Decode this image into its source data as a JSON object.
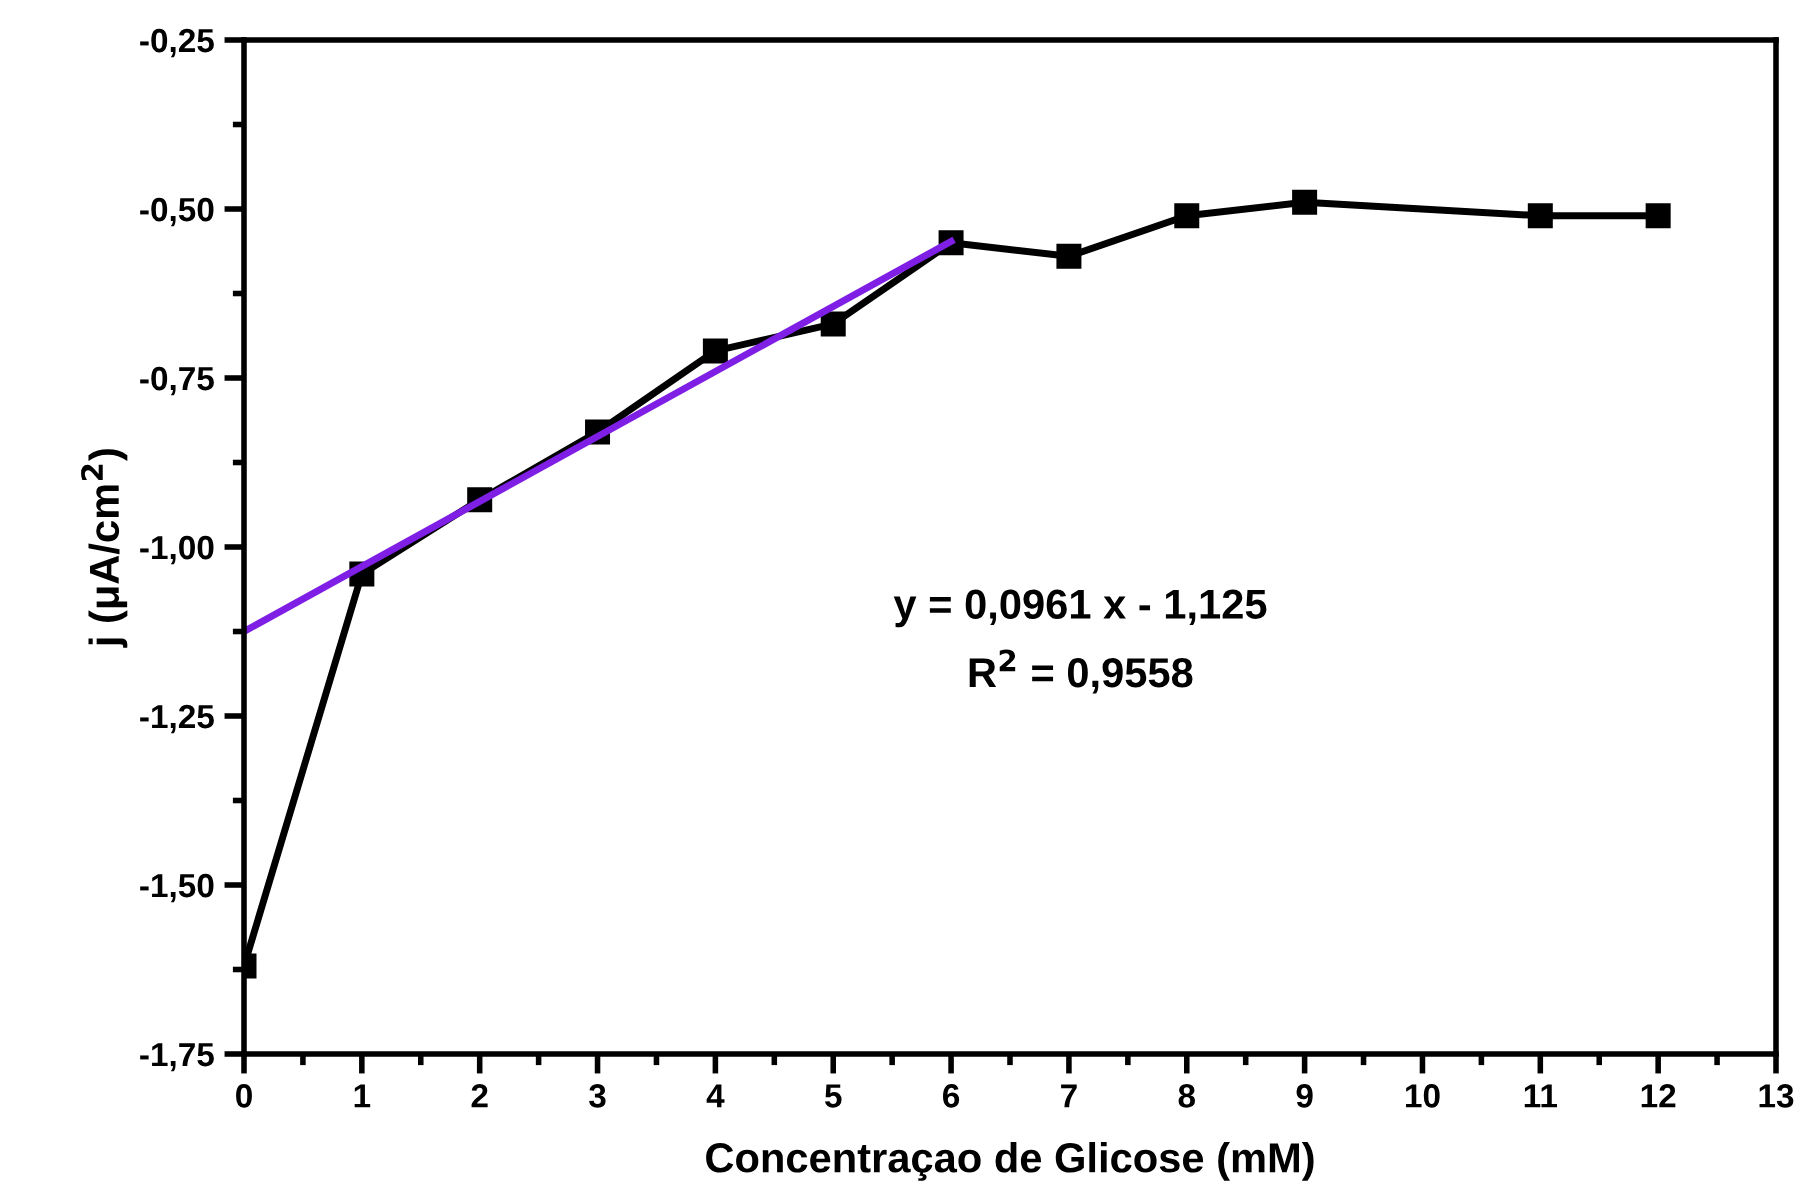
{
  "chart_data": {
    "type": "line",
    "xlabel": "Concentraçao de Glicose (mM)",
    "ylabel": "j (μA/cm$^{2}$)",
    "series": [
      {
        "color": "#000000",
        "marker": "square",
        "x": [
          0,
          1,
          2,
          3,
          4,
          5,
          6,
          7,
          8,
          9,
          11,
          12
        ],
        "values": [
          -1.62,
          -1.04,
          -0.93,
          -0.83,
          -0.71,
          -0.67,
          -0.55,
          -0.57,
          -0.51,
          -0.49,
          -0.51,
          -0.51
        ]
      },
      {
        "type": "line",
        "color": "#7f1fe6",
        "marker": "none",
        "x": [
          0,
          6
        ],
        "values": [
          -1.125,
          -0.548
        ]
      }
    ],
    "xlim": [
      0,
      13
    ],
    "xticks": [
      0,
      {
        "value": 0.5,
        "label": null
      },
      1,
      {
        "value": 1.5,
        "label": null
      },
      2,
      {
        "value": 2.5,
        "label": null
      },
      3,
      {
        "value": 3.5,
        "label": null
      },
      4,
      {
        "value": 4.5,
        "label": null
      },
      5,
      {
        "value": 5.5,
        "label": null
      },
      6,
      {
        "value": 6.5,
        "label": null
      },
      7,
      {
        "value": 7.5,
        "label": null
      },
      8,
      {
        "value": 8.5,
        "label": null
      },
      9,
      {
        "value": 9.5,
        "label": null
      },
      10,
      {
        "value": 10.5,
        "label": null
      },
      11,
      {
        "value": 11.5,
        "label": null
      },
      12,
      {
        "value": 12.5,
        "label": null
      },
      13
    ],
    "ylim": [
      -1.75,
      -0.25
    ],
    "yticks": [
      {
        "value": -1.75,
        "label": "-1,75"
      },
      {
        "value": -1.625,
        "label": null
      },
      {
        "value": -1.5,
        "label": "-1,50"
      },
      {
        "value": -1.375,
        "label": null
      },
      {
        "value": -1.25,
        "label": "-1,25"
      },
      {
        "value": -1.125,
        "label": null
      },
      {
        "value": -1.0,
        "label": "-1,00"
      },
      {
        "value": -0.875,
        "label": null
      },
      {
        "value": -0.75,
        "label": "-0,75"
      },
      {
        "value": -0.625,
        "label": null
      },
      {
        "value": -0.5,
        "label": "-0,50"
      },
      {
        "value": -0.375,
        "label": null
      },
      {
        "value": -0.25,
        "label": "-0,25"
      }
    ],
    "annotations": [
      "y = 0,0961 x - 1,125",
      "R$^{2}$ = 0,9558"
    ]
  }
}
